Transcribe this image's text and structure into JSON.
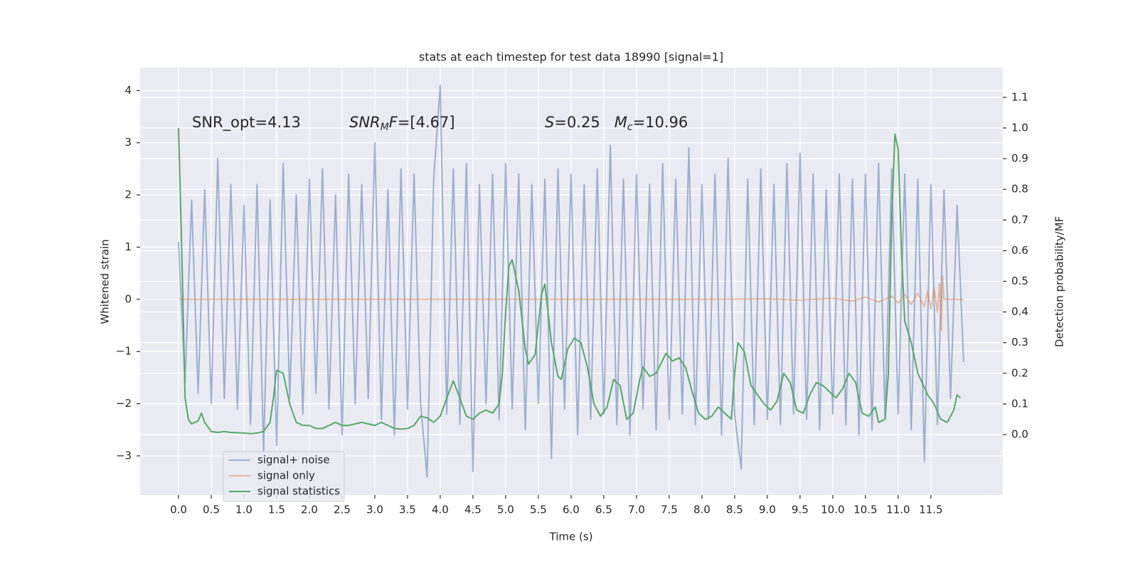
{
  "chart_data": {
    "type": "line",
    "title": "stats at each timestep for test data 18990 [signal=1]",
    "xlabel": "Time (s)",
    "ylabel": "Whitened strain",
    "y2label": "Detection probability/MF",
    "xlim": [
      -0.587,
      12.6
    ],
    "ylim": [
      -3.75,
      4.44
    ],
    "y2lim": [
      -0.197,
      1.197
    ],
    "grid": true,
    "legend": "lower left",
    "xticks": [
      {
        "value": 0.0,
        "label": "0.0"
      },
      {
        "value": 0.5,
        "label": "0.5"
      },
      {
        "value": 1.0,
        "label": "1.0"
      },
      {
        "value": 1.5,
        "label": "1.5"
      },
      {
        "value": 2.0,
        "label": "2.0"
      },
      {
        "value": 2.5,
        "label": "2.5"
      },
      {
        "value": 3.0,
        "label": "3.0"
      },
      {
        "value": 3.5,
        "label": "3.5"
      },
      {
        "value": 4.0,
        "label": "4.0"
      },
      {
        "value": 4.5,
        "label": "4.5"
      },
      {
        "value": 5.0,
        "label": "5.0"
      },
      {
        "value": 5.5,
        "label": "5.5"
      },
      {
        "value": 6.0,
        "label": "6.0"
      },
      {
        "value": 6.5,
        "label": "6.5"
      },
      {
        "value": 7.0,
        "label": "7.0"
      },
      {
        "value": 7.5,
        "label": "7.5"
      },
      {
        "value": 8.0,
        "label": "8.0"
      },
      {
        "value": 8.5,
        "label": "8.5"
      },
      {
        "value": 9.0,
        "label": "9.0"
      },
      {
        "value": 9.5,
        "label": "9.5"
      },
      {
        "value": 10.0,
        "label": "10.0"
      },
      {
        "value": 10.5,
        "label": "10.5"
      },
      {
        "value": 11.0,
        "label": "11.0"
      },
      {
        "value": 11.5,
        "label": "11.5"
      }
    ],
    "yticks": [
      {
        "value": -3,
        "label": "−3"
      },
      {
        "value": -2,
        "label": "−2"
      },
      {
        "value": -1,
        "label": "−1"
      },
      0,
      1,
      2,
      3,
      4
    ],
    "y2ticks": [
      {
        "value": 0.0,
        "label": "0.0"
      },
      {
        "value": 0.1,
        "label": "0.1"
      },
      {
        "value": 0.2,
        "label": "0.2"
      },
      {
        "value": 0.3,
        "label": "0.3"
      },
      {
        "value": 0.4,
        "label": "0.4"
      },
      {
        "value": 0.5,
        "label": "0.5"
      },
      {
        "value": 0.6,
        "label": "0.6"
      },
      {
        "value": 0.7,
        "label": "0.7"
      },
      {
        "value": 0.8,
        "label": "0.8"
      },
      {
        "value": 0.9,
        "label": "0.9"
      },
      {
        "value": 1.0,
        "label": "1.0"
      },
      {
        "value": 1.1,
        "label": "1.1"
      }
    ],
    "annotations": [
      {
        "parts": [
          {
            "text": "SNR_opt=4.13"
          }
        ]
      },
      {
        "parts": [
          {
            "text": "SNR",
            "italic": true
          },
          {
            "text": "M",
            "italic": true,
            "sub": true
          },
          {
            "text": "F",
            "italic": true
          },
          {
            "text": "=[4.67]"
          }
        ]
      },
      {
        "parts": [
          {
            "text": "S",
            "italic": true
          },
          {
            "text": "=0.25   "
          },
          {
            "text": "M",
            "italic": true
          },
          {
            "text": "c",
            "italic": true,
            "sub": true
          },
          {
            "text": "=10.96"
          }
        ]
      }
    ],
    "series": [
      {
        "name": "signal+ noise",
        "color": "#4c72b0",
        "opacity": 0.5,
        "x": [
          0.0,
          0.1,
          0.2,
          0.3,
          0.4,
          0.5,
          0.6,
          0.7,
          0.8,
          0.9,
          1.0,
          1.1,
          1.2,
          1.3,
          1.4,
          1.5,
          1.6,
          1.7,
          1.8,
          1.9,
          2.0,
          2.1,
          2.2,
          2.3,
          2.4,
          2.5,
          2.6,
          2.7,
          2.8,
          2.9,
          3.0,
          3.1,
          3.2,
          3.3,
          3.4,
          3.5,
          3.6,
          3.7,
          3.8,
          3.9,
          4.0,
          4.1,
          4.2,
          4.3,
          4.4,
          4.5,
          4.6,
          4.7,
          4.8,
          4.9,
          5.0,
          5.1,
          5.2,
          5.3,
          5.4,
          5.5,
          5.6,
          5.7,
          5.8,
          5.9,
          6.0,
          6.1,
          6.2,
          6.3,
          6.4,
          6.5,
          6.6,
          6.7,
          6.8,
          6.9,
          7.0,
          7.1,
          7.2,
          7.3,
          7.4,
          7.5,
          7.6,
          7.7,
          7.8,
          7.9,
          8.0,
          8.1,
          8.2,
          8.3,
          8.4,
          8.5,
          8.6,
          8.7,
          8.8,
          8.9,
          9.0,
          9.1,
          9.2,
          9.3,
          9.4,
          9.5,
          9.6,
          9.7,
          9.8,
          9.9,
          10.0,
          10.1,
          10.2,
          10.3,
          10.4,
          10.5,
          10.6,
          10.7,
          10.8,
          10.9,
          11.0,
          11.1,
          11.2,
          11.3,
          11.4,
          11.5,
          11.6,
          11.7,
          11.8,
          11.9,
          12.0
        ],
        "values": [
          1.1,
          -1.6,
          1.9,
          -1.8,
          2.1,
          -2.0,
          2.7,
          -1.9,
          2.2,
          -2.1,
          1.8,
          -2.4,
          2.2,
          -2.9,
          1.9,
          -2.8,
          2.6,
          -1.9,
          2.0,
          -2.2,
          2.3,
          -1.8,
          2.5,
          -2.1,
          2.0,
          -2.6,
          2.4,
          -2.0,
          2.2,
          -1.9,
          3.0,
          -2.3,
          2.1,
          -2.6,
          2.5,
          -2.1,
          2.4,
          -2.0,
          -3.4,
          2.3,
          4.1,
          -2.2,
          2.5,
          -2.4,
          2.6,
          -3.3,
          2.2,
          -2.0,
          2.4,
          -2.3,
          2.6,
          -2.1,
          2.4,
          -2.5,
          2.2,
          -2.0,
          2.3,
          -3.05,
          2.5,
          -2.1,
          2.4,
          -2.6,
          2.2,
          -2.3,
          2.5,
          -2.2,
          2.95,
          -2.4,
          2.3,
          -2.6,
          2.4,
          -2.1,
          2.2,
          -2.5,
          2.6,
          -2.3,
          2.3,
          -2.2,
          2.9,
          -2.4,
          2.2,
          -2.3,
          2.4,
          -2.6,
          2.7,
          -2.2,
          -3.25,
          2.3,
          -2.4,
          2.5,
          -2.3,
          2.2,
          -2.4,
          2.6,
          -2.2,
          2.8,
          -2.3,
          2.4,
          -2.5,
          2.1,
          -2.2,
          2.4,
          -2.4,
          2.3,
          -2.6,
          2.4,
          -2.5,
          2.6,
          -2.3,
          2.5,
          -2.2,
          2.4,
          -2.5,
          2.3,
          -3.1,
          2.2,
          -2.4,
          2.1,
          -1.9,
          1.8,
          -1.2
        ]
      },
      {
        "name": "signal only",
        "color": "#dd8452",
        "opacity": 0.5,
        "x": [
          0.0,
          8.0,
          9.0,
          9.5,
          10.0,
          10.3,
          10.5,
          10.7,
          10.9,
          11.0,
          11.1,
          11.2,
          11.3,
          11.4,
          11.45,
          11.5,
          11.55,
          11.6,
          11.63,
          11.66,
          11.68,
          11.7,
          12.0
        ],
        "values": [
          0.0,
          0.0,
          0.01,
          -0.015,
          0.02,
          -0.03,
          0.04,
          -0.05,
          0.06,
          -0.07,
          0.09,
          -0.1,
          0.12,
          -0.14,
          0.16,
          -0.18,
          0.22,
          -0.25,
          0.3,
          -0.6,
          0.45,
          0.0,
          0.0
        ]
      },
      {
        "name": "signal statistics",
        "color": "#55a868",
        "opacity": 1,
        "axis": "y2",
        "x": [
          0.0,
          0.05,
          0.1,
          0.15,
          0.2,
          0.3,
          0.35,
          0.4,
          0.5,
          0.6,
          0.7,
          0.8,
          1.0,
          1.1,
          1.2,
          1.3,
          1.4,
          1.45,
          1.5,
          1.6,
          1.7,
          1.8,
          1.9,
          2.0,
          2.1,
          2.2,
          2.3,
          2.4,
          2.5,
          2.6,
          2.8,
          2.9,
          3.0,
          3.1,
          3.2,
          3.3,
          3.4,
          3.5,
          3.6,
          3.7,
          3.8,
          3.9,
          4.0,
          4.1,
          4.2,
          4.3,
          4.4,
          4.5,
          4.6,
          4.7,
          4.8,
          4.9,
          4.95,
          5.0,
          5.05,
          5.1,
          5.2,
          5.3,
          5.35,
          5.45,
          5.55,
          5.6,
          5.7,
          5.8,
          5.85,
          5.95,
          6.05,
          6.15,
          6.25,
          6.35,
          6.45,
          6.55,
          6.65,
          6.75,
          6.85,
          6.95,
          7.05,
          7.1,
          7.2,
          7.3,
          7.45,
          7.55,
          7.65,
          7.75,
          7.85,
          7.95,
          8.05,
          8.15,
          8.25,
          8.35,
          8.45,
          8.5,
          8.55,
          8.65,
          8.75,
          8.85,
          8.95,
          9.05,
          9.15,
          9.25,
          9.35,
          9.45,
          9.55,
          9.65,
          9.75,
          9.85,
          9.95,
          10.05,
          10.15,
          10.25,
          10.35,
          10.45,
          10.55,
          10.65,
          10.7,
          10.8,
          10.85,
          10.9,
          10.95,
          11.0,
          11.05,
          11.1,
          11.2,
          11.3,
          11.45,
          11.55,
          11.65,
          11.75,
          11.85,
          11.9,
          11.95
        ],
        "values": [
          1.0,
          0.6,
          0.12,
          0.05,
          0.035,
          0.045,
          0.07,
          0.04,
          0.01,
          0.007,
          0.01,
          0.007,
          0.005,
          0.003,
          0.005,
          0.01,
          0.04,
          0.12,
          0.21,
          0.2,
          0.1,
          0.04,
          0.03,
          0.03,
          0.02,
          0.02,
          0.03,
          0.04,
          0.03,
          0.03,
          0.04,
          0.035,
          0.03,
          0.04,
          0.03,
          0.02,
          0.018,
          0.02,
          0.03,
          0.06,
          0.055,
          0.04,
          0.06,
          0.12,
          0.175,
          0.12,
          0.06,
          0.05,
          0.07,
          0.08,
          0.07,
          0.1,
          0.2,
          0.4,
          0.55,
          0.57,
          0.47,
          0.28,
          0.23,
          0.26,
          0.46,
          0.49,
          0.3,
          0.19,
          0.18,
          0.28,
          0.315,
          0.3,
          0.22,
          0.1,
          0.06,
          0.09,
          0.18,
          0.16,
          0.05,
          0.07,
          0.18,
          0.22,
          0.19,
          0.2,
          0.265,
          0.24,
          0.25,
          0.22,
          0.14,
          0.07,
          0.05,
          0.06,
          0.09,
          0.07,
          0.05,
          0.2,
          0.3,
          0.27,
          0.16,
          0.13,
          0.1,
          0.08,
          0.11,
          0.2,
          0.17,
          0.08,
          0.07,
          0.13,
          0.17,
          0.16,
          0.14,
          0.12,
          0.15,
          0.2,
          0.17,
          0.07,
          0.06,
          0.09,
          0.04,
          0.05,
          0.2,
          0.7,
          0.98,
          0.93,
          0.6,
          0.37,
          0.3,
          0.2,
          0.13,
          0.1,
          0.05,
          0.04,
          0.08,
          0.13,
          0.12
        ]
      }
    ]
  }
}
